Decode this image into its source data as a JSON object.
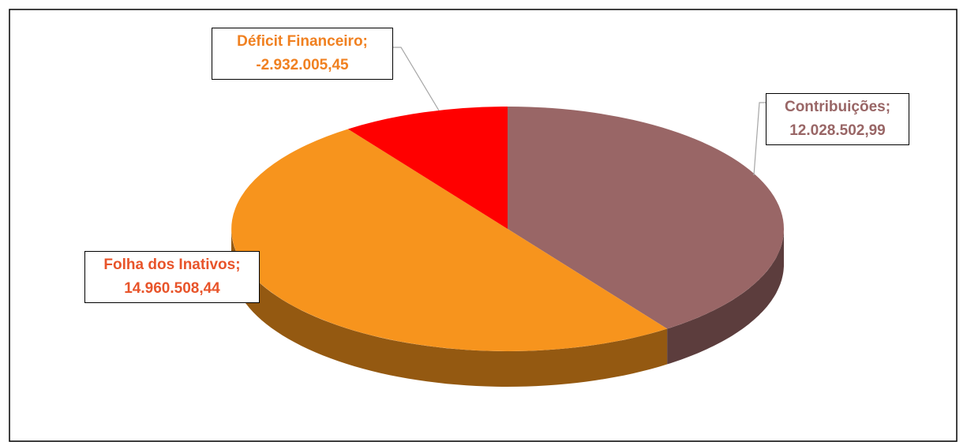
{
  "chart_data": {
    "type": "pie",
    "categories": [
      "Contribuições",
      "Folha dos Inativos",
      "Déficit Financeiro"
    ],
    "values": [
      12028502.99,
      14960508.44,
      -2932005.45
    ],
    "value_labels": [
      "12.028.502,99",
      "14.960.508,44",
      "-2.932.005,45"
    ],
    "label_separator": ";",
    "colors": [
      "#996666",
      "#f7941d",
      "#ff0000"
    ],
    "label_colors": [
      "#996666",
      "#e8542a",
      "#f08020"
    ]
  }
}
